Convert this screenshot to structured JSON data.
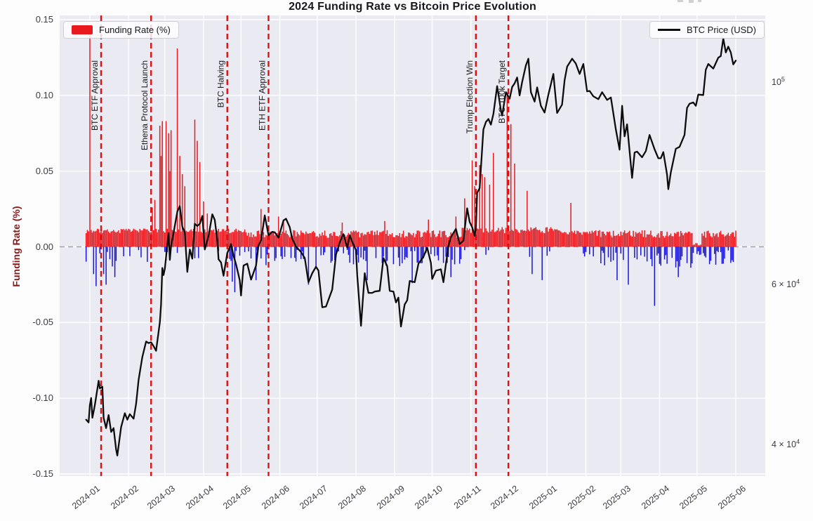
{
  "chart_data": {
    "type": "combo-bar-line",
    "title": "2024 Funding Rate vs Bitcoin Price Evolution",
    "legend": {
      "funding_label": "Funding Rate (%)",
      "price_label": "BTC Price (USD)",
      "positions": [
        "upper-left",
        "upper-right"
      ]
    },
    "grid": true,
    "colors": {
      "plot_bg": "#eaeaf2",
      "grid": "#ffffff",
      "funding_pos": "#e8191f",
      "funding_neg": "#1a15d6",
      "btc_line": "#0d0d0d",
      "event_line": "#dd1111",
      "zero_line": "#a2a2aa",
      "ylabel_left": "#8b1a1a",
      "tick_text": "#3a3a40",
      "event_text": "#1a1a1a"
    },
    "x_axis": {
      "start": "2024-01-01",
      "end": "2025-06-01",
      "ticks": [
        "2024-01",
        "2024-02",
        "2024-03",
        "2024-04",
        "2024-05",
        "2024-06",
        "2024-07",
        "2024-08",
        "2024-09",
        "2024-10",
        "2024-11",
        "2024-12",
        "2025-01",
        "2025-02",
        "2025-03",
        "2025-04",
        "2025-05",
        "2025-06"
      ]
    },
    "y_left": {
      "label": "Funding Rate (%)",
      "range": [
        -0.15,
        0.15
      ],
      "ticks": [
        0.15,
        0.1,
        0.05,
        0.0,
        -0.05,
        -0.1,
        -0.15
      ]
    },
    "y_right": {
      "scale": "log",
      "unit": "USD",
      "range_approx": [
        37500,
        117000
      ],
      "ticks": [
        {
          "main": "10",
          "exp": "5",
          "value": 100000
        },
        {
          "main": "6 × 10",
          "exp": "4",
          "value": 60000
        },
        {
          "main": "4 × 10",
          "exp": "4",
          "value": 40000
        }
      ]
    },
    "events": [
      {
        "date": "2024-01-10",
        "label": "BTC ETF Approval"
      },
      {
        "date": "2024-02-19",
        "label": "Ethena Protocol Launch"
      },
      {
        "date": "2024-04-20",
        "label": "BTC Halving"
      },
      {
        "date": "2024-05-23",
        "label": "ETH ETF Approval"
      },
      {
        "date": "2024-11-05",
        "label": "Trump Election Win"
      },
      {
        "date": "2024-12-01",
        "label": "BTC 100k Target"
      }
    ],
    "funding_rate": {
      "name": "Funding Rate (%)",
      "bar_type": "daily",
      "typical_positive_band": 0.01,
      "seed": 7,
      "spikes": [
        [
          "2024-01-01",
          0.14
        ],
        [
          "2024-02-20",
          0.026
        ],
        [
          "2024-02-22",
          0.031
        ],
        [
          "2024-02-26",
          0.08
        ],
        [
          "2024-02-27",
          0.06
        ],
        [
          "2024-02-28",
          0.083
        ],
        [
          "2024-03-02",
          0.083
        ],
        [
          "2024-03-04",
          0.075
        ],
        [
          "2024-03-05",
          0.05
        ],
        [
          "2024-03-06",
          0.077
        ],
        [
          "2024-03-11",
          0.131
        ],
        [
          "2024-03-13",
          0.06
        ],
        [
          "2024-03-15",
          0.048
        ],
        [
          "2024-03-17",
          0.04
        ],
        [
          "2024-03-25",
          0.084
        ],
        [
          "2024-03-27",
          0.07
        ],
        [
          "2024-03-29",
          0.056
        ],
        [
          "2024-04-01",
          0.03
        ],
        [
          "2024-04-04",
          0.022
        ],
        [
          "2024-05-17",
          0.025
        ],
        [
          "2024-05-31",
          0.02
        ],
        [
          "2024-06-04",
          0.018
        ],
        [
          "2024-07-21",
          0.016
        ],
        [
          "2024-08-24",
          0.017
        ],
        [
          "2024-09-28",
          0.018
        ],
        [
          "2024-10-20",
          0.02
        ],
        [
          "2024-10-27",
          0.032
        ],
        [
          "2024-11-02",
          0.057
        ],
        [
          "2024-11-04",
          0.04
        ],
        [
          "2024-11-08",
          0.054
        ],
        [
          "2024-11-10",
          0.048
        ],
        [
          "2024-11-12",
          0.046
        ],
        [
          "2024-11-16",
          0.041
        ],
        [
          "2024-11-19",
          0.062
        ],
        [
          "2024-11-30",
          0.102
        ],
        [
          "2024-12-03",
          0.081
        ],
        [
          "2024-12-06",
          0.055
        ],
        [
          "2024-12-16",
          0.037
        ],
        [
          "2025-01-20",
          0.029
        ]
      ],
      "deep_negatives": [
        [
          "2024-01-04",
          -0.018
        ],
        [
          "2024-01-06",
          -0.026
        ],
        [
          "2024-01-12",
          -0.018
        ],
        [
          "2024-01-14",
          -0.025
        ],
        [
          "2024-01-19",
          -0.013
        ],
        [
          "2024-01-21",
          -0.02
        ],
        [
          "2024-04-24",
          -0.023
        ],
        [
          "2024-04-26",
          -0.03
        ],
        [
          "2024-05-13",
          -0.022
        ],
        [
          "2024-06-24",
          -0.025
        ],
        [
          "2024-08-10",
          -0.022
        ],
        [
          "2024-09-15",
          -0.024
        ],
        [
          "2024-10-16",
          -0.02
        ],
        [
          "2024-12-20",
          -0.018
        ],
        [
          "2024-12-28",
          -0.022
        ],
        [
          "2025-02-26",
          -0.022
        ],
        [
          "2025-03-07",
          -0.025
        ],
        [
          "2025-03-28",
          -0.039
        ],
        [
          "2025-04-16",
          -0.02
        ]
      ],
      "eras": [
        {
          "from": "2025-04-28",
          "to": "2025-05-05",
          "neg_prob": 0.5,
          "pos": [
            0.001,
            0.003
          ],
          "neg": [
            0.002,
            0.008
          ]
        },
        {
          "from": "2023-12-28",
          "to": "2024-05-05",
          "neg_prob": 0.18,
          "pos": [
            0.009,
            0.012
          ],
          "neg": [
            0.002,
            0.01
          ]
        },
        {
          "from": "2024-05-05",
          "to": "2024-10-25",
          "neg_prob": 0.45,
          "pos": [
            0.006,
            0.011
          ],
          "neg": [
            0.002,
            0.013
          ]
        },
        {
          "from": "2024-10-25",
          "to": "2025-01-10",
          "neg_prob": 0.1,
          "pos": [
            0.009,
            0.013
          ],
          "neg": [
            0.002,
            0.008
          ]
        },
        {
          "from": "2025-01-10",
          "to": "2025-02-10",
          "neg_prob": 0.25,
          "pos": [
            0.008,
            0.011
          ],
          "neg": [
            0.002,
            0.01
          ]
        },
        {
          "from": "2025-02-10",
          "to": "2025-06-02",
          "neg_prob": 0.5,
          "pos": [
            0.006,
            0.011
          ],
          "neg": [
            0.002,
            0.014
          ]
        }
      ]
    },
    "btc_price_k_usd": [
      [
        "2023-12-29",
        42.6
      ],
      [
        "2023-12-31",
        42.3
      ],
      [
        "2024-01-01",
        44.2
      ],
      [
        "2024-01-02",
        45.0
      ],
      [
        "2024-01-03",
        42.8
      ],
      [
        "2024-01-05",
        44.2
      ],
      [
        "2024-01-08",
        47.0
      ],
      [
        "2024-01-09",
        46.1
      ],
      [
        "2024-01-11",
        46.3
      ],
      [
        "2024-01-12",
        42.8
      ],
      [
        "2024-01-14",
        41.7
      ],
      [
        "2024-01-16",
        43.1
      ],
      [
        "2024-01-18",
        41.3
      ],
      [
        "2024-01-20",
        41.7
      ],
      [
        "2024-01-22",
        39.5
      ],
      [
        "2024-01-23",
        38.9
      ],
      [
        "2024-01-26",
        41.8
      ],
      [
        "2024-01-29",
        43.3
      ],
      [
        "2024-01-31",
        42.6
      ],
      [
        "2024-02-02",
        43.2
      ],
      [
        "2024-02-05",
        42.7
      ],
      [
        "2024-02-07",
        44.3
      ],
      [
        "2024-02-09",
        47.1
      ],
      [
        "2024-02-12",
        49.9
      ],
      [
        "2024-02-15",
        51.9
      ],
      [
        "2024-02-17",
        51.7
      ],
      [
        "2024-02-19",
        51.8
      ],
      [
        "2024-02-21",
        51.3
      ],
      [
        "2024-02-23",
        50.7
      ],
      [
        "2024-02-26",
        54.5
      ],
      [
        "2024-02-27",
        57.0
      ],
      [
        "2024-02-28",
        62.5
      ],
      [
        "2024-02-29",
        61.4
      ],
      [
        "2024-03-01",
        62.4
      ],
      [
        "2024-03-04",
        68.3
      ],
      [
        "2024-03-05",
        63.8
      ],
      [
        "2024-03-06",
        66.1
      ],
      [
        "2024-03-08",
        68.3
      ],
      [
        "2024-03-11",
        72.1
      ],
      [
        "2024-03-13",
        73.1
      ],
      [
        "2024-03-15",
        69.4
      ],
      [
        "2024-03-17",
        68.4
      ],
      [
        "2024-03-19",
        61.9
      ],
      [
        "2024-03-21",
        65.5
      ],
      [
        "2024-03-23",
        64.0
      ],
      [
        "2024-03-25",
        69.9
      ],
      [
        "2024-03-27",
        69.5
      ],
      [
        "2024-03-29",
        69.9
      ],
      [
        "2024-03-31",
        71.3
      ],
      [
        "2024-04-02",
        65.5
      ],
      [
        "2024-04-05",
        67.8
      ],
      [
        "2024-04-08",
        71.6
      ],
      [
        "2024-04-10",
        70.6
      ],
      [
        "2024-04-12",
        67.1
      ],
      [
        "2024-04-13",
        63.9
      ],
      [
        "2024-04-15",
        63.4
      ],
      [
        "2024-04-17",
        61.3
      ],
      [
        "2024-04-20",
        64.9
      ],
      [
        "2024-04-23",
        66.4
      ],
      [
        "2024-04-25",
        64.5
      ],
      [
        "2024-04-27",
        63.1
      ],
      [
        "2024-04-30",
        60.6
      ],
      [
        "2024-05-01",
        58.3
      ],
      [
        "2024-05-03",
        62.9
      ],
      [
        "2024-05-06",
        63.2
      ],
      [
        "2024-05-09",
        60.7
      ],
      [
        "2024-05-13",
        62.9
      ],
      [
        "2024-05-15",
        66.2
      ],
      [
        "2024-05-17",
        67.0
      ],
      [
        "2024-05-20",
        71.4
      ],
      [
        "2024-05-23",
        67.9
      ],
      [
        "2024-05-26",
        68.5
      ],
      [
        "2024-05-28",
        68.4
      ],
      [
        "2024-05-31",
        67.5
      ],
      [
        "2024-06-04",
        70.5
      ],
      [
        "2024-06-06",
        70.8
      ],
      [
        "2024-06-09",
        69.3
      ],
      [
        "2024-06-11",
        67.3
      ],
      [
        "2024-06-14",
        66.0
      ],
      [
        "2024-06-18",
        65.1
      ],
      [
        "2024-06-21",
        64.1
      ],
      [
        "2024-06-24",
        60.3
      ],
      [
        "2024-06-27",
        61.7
      ],
      [
        "2024-06-30",
        62.7
      ],
      [
        "2024-07-02",
        62.1
      ],
      [
        "2024-07-03",
        60.2
      ],
      [
        "2024-07-05",
        56.6
      ],
      [
        "2024-07-08",
        56.7
      ],
      [
        "2024-07-10",
        57.7
      ],
      [
        "2024-07-13",
        59.2
      ],
      [
        "2024-07-16",
        64.7
      ],
      [
        "2024-07-19",
        66.7
      ],
      [
        "2024-07-22",
        68.1
      ],
      [
        "2024-07-25",
        65.8
      ],
      [
        "2024-07-27",
        67.9
      ],
      [
        "2024-07-29",
        66.8
      ],
      [
        "2024-08-01",
        65.4
      ],
      [
        "2024-08-02",
        61.4
      ],
      [
        "2024-08-05",
        54.0
      ],
      [
        "2024-08-08",
        61.7
      ],
      [
        "2024-08-11",
        58.7
      ],
      [
        "2024-08-14",
        58.7
      ],
      [
        "2024-08-16",
        58.9
      ],
      [
        "2024-08-20",
        59.0
      ],
      [
        "2024-08-23",
        64.1
      ],
      [
        "2024-08-26",
        62.8
      ],
      [
        "2024-08-28",
        59.0
      ],
      [
        "2024-08-31",
        58.9
      ],
      [
        "2024-09-02",
        57.3
      ],
      [
        "2024-09-04",
        58.0
      ],
      [
        "2024-09-06",
        53.9
      ],
      [
        "2024-09-09",
        57.0
      ],
      [
        "2024-09-11",
        57.6
      ],
      [
        "2024-09-13",
        60.5
      ],
      [
        "2024-09-17",
        60.3
      ],
      [
        "2024-09-20",
        63.2
      ],
      [
        "2024-09-24",
        64.3
      ],
      [
        "2024-09-27",
        65.8
      ],
      [
        "2024-09-30",
        63.3
      ],
      [
        "2024-10-01",
        60.8
      ],
      [
        "2024-10-04",
        62.1
      ],
      [
        "2024-10-08",
        62.3
      ],
      [
        "2024-10-10",
        60.3
      ],
      [
        "2024-10-14",
        66.1
      ],
      [
        "2024-10-16",
        67.6
      ],
      [
        "2024-10-20",
        69.0
      ],
      [
        "2024-10-23",
        66.4
      ],
      [
        "2024-10-26",
        67.0
      ],
      [
        "2024-10-29",
        72.7
      ],
      [
        "2024-10-31",
        70.2
      ],
      [
        "2024-11-02",
        69.3
      ],
      [
        "2024-11-04",
        67.8
      ],
      [
        "2024-11-05",
        69.4
      ],
      [
        "2024-11-06",
        75.6
      ],
      [
        "2024-11-08",
        76.5
      ],
      [
        "2024-11-11",
        88.7
      ],
      [
        "2024-11-13",
        90.4
      ],
      [
        "2024-11-15",
        91.1
      ],
      [
        "2024-11-17",
        89.8
      ],
      [
        "2024-11-19",
        92.3
      ],
      [
        "2024-11-22",
        99.0
      ],
      [
        "2024-11-25",
        93.1
      ],
      [
        "2024-11-26",
        91.9
      ],
      [
        "2024-11-29",
        97.5
      ],
      [
        "2024-12-02",
        95.9
      ],
      [
        "2024-12-04",
        98.8
      ],
      [
        "2024-12-06",
        99.7
      ],
      [
        "2024-12-08",
        101.2
      ],
      [
        "2024-12-10",
        96.7
      ],
      [
        "2024-12-12",
        100.0
      ],
      [
        "2024-12-15",
        104.3
      ],
      [
        "2024-12-17",
        106.1
      ],
      [
        "2024-12-19",
        97.5
      ],
      [
        "2024-12-22",
        95.2
      ],
      [
        "2024-12-24",
        98.7
      ],
      [
        "2024-12-27",
        94.2
      ],
      [
        "2024-12-30",
        92.6
      ],
      [
        "2025-01-02",
        96.9
      ],
      [
        "2025-01-06",
        102.1
      ],
      [
        "2025-01-09",
        92.5
      ],
      [
        "2025-01-13",
        94.5
      ],
      [
        "2025-01-15",
        100.5
      ],
      [
        "2025-01-17",
        104.0
      ],
      [
        "2025-01-21",
        106.1
      ],
      [
        "2025-01-24",
        104.8
      ],
      [
        "2025-01-27",
        102.1
      ],
      [
        "2025-01-30",
        104.7
      ],
      [
        "2025-02-02",
        97.7
      ],
      [
        "2025-02-04",
        97.8
      ],
      [
        "2025-02-07",
        96.5
      ],
      [
        "2025-02-11",
        95.8
      ],
      [
        "2025-02-14",
        97.5
      ],
      [
        "2025-02-18",
        95.6
      ],
      [
        "2025-02-21",
        96.2
      ],
      [
        "2025-02-25",
        88.7
      ],
      [
        "2025-02-28",
        84.3
      ],
      [
        "2025-03-02",
        94.2
      ],
      [
        "2025-03-04",
        87.2
      ],
      [
        "2025-03-06",
        89.9
      ],
      [
        "2025-03-10",
        78.5
      ],
      [
        "2025-03-12",
        83.7
      ],
      [
        "2025-03-14",
        83.9
      ],
      [
        "2025-03-18",
        82.7
      ],
      [
        "2025-03-21",
        84.0
      ],
      [
        "2025-03-24",
        87.5
      ],
      [
        "2025-03-28",
        84.4
      ],
      [
        "2025-03-31",
        82.5
      ],
      [
        "2025-04-02",
        82.5
      ],
      [
        "2025-04-04",
        83.8
      ],
      [
        "2025-04-07",
        79.2
      ],
      [
        "2025-04-08",
        76.3
      ],
      [
        "2025-04-10",
        79.6
      ],
      [
        "2025-04-14",
        84.5
      ],
      [
        "2025-04-17",
        84.9
      ],
      [
        "2025-04-21",
        87.5
      ],
      [
        "2025-04-23",
        93.7
      ],
      [
        "2025-04-25",
        94.7
      ],
      [
        "2025-04-28",
        95.0
      ],
      [
        "2025-04-30",
        94.2
      ],
      [
        "2025-05-02",
        96.9
      ],
      [
        "2025-05-06",
        96.8
      ],
      [
        "2025-05-08",
        103.2
      ],
      [
        "2025-05-10",
        104.7
      ],
      [
        "2025-05-12",
        104.1
      ],
      [
        "2025-05-14",
        103.5
      ],
      [
        "2025-05-18",
        106.4
      ],
      [
        "2025-05-20",
        106.8
      ],
      [
        "2025-05-22",
        111.7
      ],
      [
        "2025-05-24",
        107.8
      ],
      [
        "2025-05-26",
        109.4
      ],
      [
        "2025-05-28",
        107.8
      ],
      [
        "2025-05-30",
        104.6
      ],
      [
        "2025-06-01",
        105.6
      ]
    ]
  }
}
